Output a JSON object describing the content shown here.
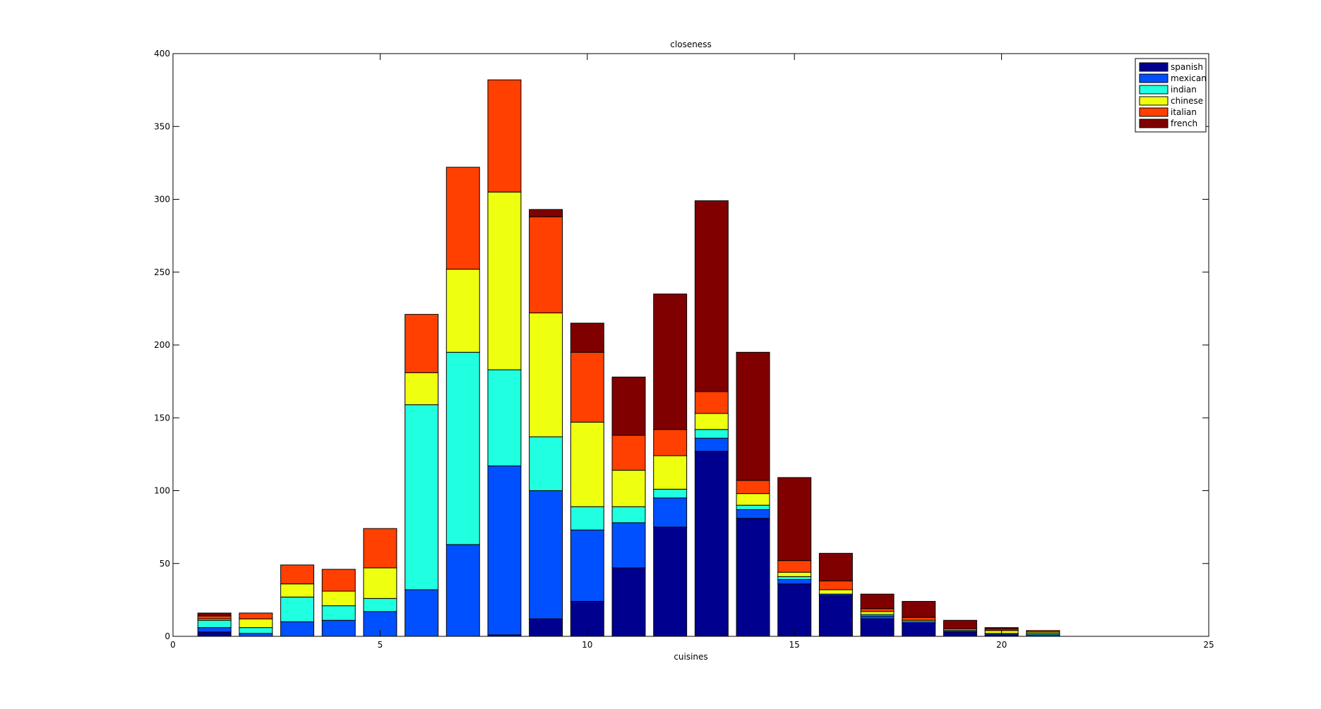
{
  "chart_data": {
    "type": "bar",
    "stacked": true,
    "title": "closeness",
    "xlabel": "cuisines",
    "ylabel": "",
    "xlim": [
      0,
      25
    ],
    "ylim": [
      0,
      400
    ],
    "xticks": [
      "0",
      "5",
      "10",
      "15",
      "20",
      "25"
    ],
    "yticks": [
      "0",
      "50",
      "100",
      "150",
      "200",
      "250",
      "300",
      "350",
      "400"
    ],
    "grid": false,
    "legend_position": "top-right",
    "x": [
      1,
      2,
      3,
      4,
      5,
      6,
      7,
      8,
      9,
      10,
      11,
      12,
      13,
      14,
      15,
      16,
      17,
      18,
      19,
      20,
      21
    ],
    "series": [
      {
        "name": "spanish",
        "color": "#00008f",
        "values": [
          3,
          0,
          0,
          0,
          0,
          0,
          0,
          1,
          12,
          24,
          47,
          75,
          127,
          81,
          36,
          28,
          12,
          9,
          3,
          1,
          0
        ]
      },
      {
        "name": "mexican",
        "color": "#0050ff",
        "values": [
          3,
          2,
          10,
          11,
          17,
          32,
          63,
          116,
          88,
          49,
          31,
          20,
          9,
          6,
          3,
          1,
          2,
          1,
          1,
          1,
          1
        ]
      },
      {
        "name": "indian",
        "color": "#20ffdf",
        "values": [
          5,
          4,
          17,
          10,
          9,
          127,
          132,
          66,
          37,
          16,
          11,
          6,
          6,
          3,
          2,
          0,
          1,
          0,
          0,
          0,
          1
        ]
      },
      {
        "name": "chinese",
        "color": "#efff10",
        "values": [
          1,
          6,
          9,
          10,
          21,
          22,
          57,
          122,
          85,
          58,
          25,
          23,
          11,
          8,
          3,
          3,
          2,
          1,
          1,
          2,
          1
        ]
      },
      {
        "name": "italian",
        "color": "#ff4000",
        "values": [
          2,
          4,
          13,
          15,
          27,
          40,
          70,
          77,
          66,
          48,
          24,
          18,
          15,
          9,
          8,
          6,
          2,
          2,
          0,
          1,
          1
        ]
      },
      {
        "name": "french",
        "color": "#800000",
        "values": [
          2,
          0,
          0,
          0,
          0,
          0,
          0,
          0,
          5,
          20,
          40,
          93,
          131,
          88,
          57,
          19,
          10,
          11,
          6,
          1,
          0
        ]
      }
    ]
  }
}
